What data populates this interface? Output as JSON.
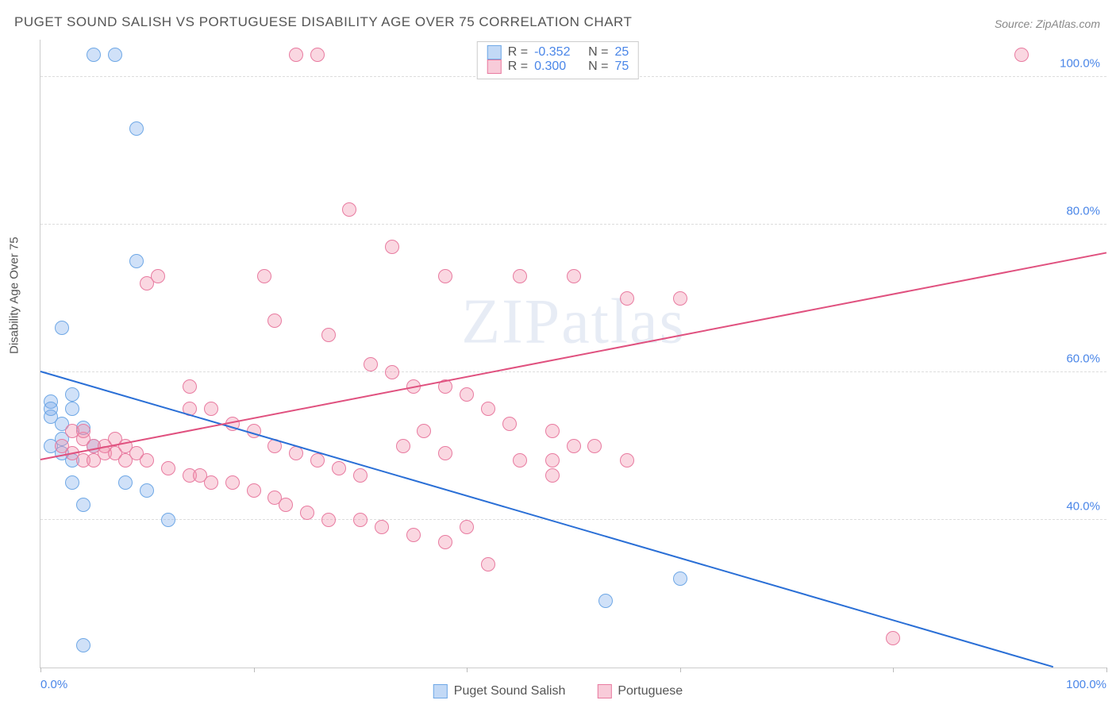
{
  "title": "PUGET SOUND SALISH VS PORTUGUESE DISABILITY AGE OVER 75 CORRELATION CHART",
  "source": "Source: ZipAtlas.com",
  "ylabel": "Disability Age Over 75",
  "watermark": "ZIPatlas",
  "chart": {
    "type": "scatter",
    "xlim": [
      0,
      100
    ],
    "ylim": [
      20,
      105
    ],
    "xticks": [
      0,
      20,
      40,
      60,
      80,
      100
    ],
    "yticks": [
      40,
      60,
      80,
      100
    ],
    "xtick_labels": {
      "start": "0.0%",
      "end": "100.0%"
    },
    "ytick_labels": [
      "40.0%",
      "60.0%",
      "80.0%",
      "100.0%"
    ],
    "grid_color": "#dddddd",
    "axis_color": "#cccccc",
    "background_color": "#ffffff",
    "marker_radius": 9,
    "marker_stroke_width": 1.5,
    "series": [
      {
        "name": "Puget Sound Salish",
        "color_fill": "rgba(120,170,235,0.35)",
        "color_stroke": "#6fa8e6",
        "line_color": "#2a6fd6",
        "R": "-0.352",
        "N": "25",
        "trend": {
          "x1": 0,
          "y1": 60,
          "x2": 95,
          "y2": 20
        },
        "points": [
          [
            5,
            103
          ],
          [
            7,
            103
          ],
          [
            9,
            93
          ],
          [
            2,
            66
          ],
          [
            3,
            57
          ],
          [
            1,
            56
          ],
          [
            3,
            55
          ],
          [
            1,
            54
          ],
          [
            2,
            53
          ],
          [
            4,
            52.5
          ],
          [
            2,
            51
          ],
          [
            1,
            50
          ],
          [
            5,
            50
          ],
          [
            8,
            45
          ],
          [
            3,
            45
          ],
          [
            4,
            42
          ],
          [
            9,
            75
          ],
          [
            10,
            44
          ],
          [
            12,
            40
          ],
          [
            53,
            29
          ],
          [
            60,
            32
          ],
          [
            4,
            23
          ],
          [
            2,
            49
          ],
          [
            3,
            48
          ],
          [
            1,
            55
          ]
        ]
      },
      {
        "name": "Portuguese",
        "color_fill": "rgba(240,140,170,0.35)",
        "color_stroke": "#e87ba0",
        "line_color": "#e0517f",
        "R": "0.300",
        "N": "75",
        "trend": {
          "x1": 0,
          "y1": 48,
          "x2": 100,
          "y2": 76
        },
        "points": [
          [
            24,
            103
          ],
          [
            26,
            103
          ],
          [
            29,
            82
          ],
          [
            33,
            77
          ],
          [
            38,
            73
          ],
          [
            45,
            73
          ],
          [
            50,
            73
          ],
          [
            55,
            70
          ],
          [
            10,
            72
          ],
          [
            21,
            73
          ],
          [
            22,
            67
          ],
          [
            27,
            65
          ],
          [
            31,
            61
          ],
          [
            33,
            60
          ],
          [
            35,
            58
          ],
          [
            38,
            58
          ],
          [
            40,
            57
          ],
          [
            42,
            55
          ],
          [
            44,
            53
          ],
          [
            48,
            52
          ],
          [
            50,
            50
          ],
          [
            52,
            50
          ],
          [
            55,
            48
          ],
          [
            8,
            50
          ],
          [
            9,
            49
          ],
          [
            10,
            48
          ],
          [
            12,
            47
          ],
          [
            14,
            46
          ],
          [
            15,
            46
          ],
          [
            16,
            45
          ],
          [
            18,
            45
          ],
          [
            20,
            44
          ],
          [
            22,
            43
          ],
          [
            23,
            42
          ],
          [
            25,
            41
          ],
          [
            27,
            40
          ],
          [
            30,
            40
          ],
          [
            32,
            39
          ],
          [
            35,
            38
          ],
          [
            38,
            37
          ],
          [
            40,
            39
          ],
          [
            42,
            34
          ],
          [
            14,
            58
          ],
          [
            16,
            55
          ],
          [
            18,
            53
          ],
          [
            20,
            52
          ],
          [
            22,
            50
          ],
          [
            24,
            49
          ],
          [
            26,
            48
          ],
          [
            28,
            47
          ],
          [
            30,
            46
          ],
          [
            2,
            50
          ],
          [
            3,
            49
          ],
          [
            4,
            48
          ],
          [
            5,
            48
          ],
          [
            6,
            49
          ],
          [
            7,
            49
          ],
          [
            8,
            48
          ],
          [
            4,
            51
          ],
          [
            5,
            50
          ],
          [
            6,
            50
          ],
          [
            7,
            51
          ],
          [
            3,
            52
          ],
          [
            4,
            52
          ],
          [
            92,
            103
          ],
          [
            80,
            24
          ],
          [
            60,
            70
          ],
          [
            48,
            48
          ],
          [
            34,
            50
          ],
          [
            36,
            52
          ],
          [
            38,
            49
          ],
          [
            45,
            48
          ],
          [
            48,
            46
          ],
          [
            11,
            73
          ],
          [
            14,
            55
          ]
        ]
      }
    ]
  },
  "legend_top": [
    {
      "swatch_fill": "rgba(120,170,235,0.45)",
      "swatch_stroke": "#6fa8e6",
      "R_label": "R =",
      "R": "-0.352",
      "N_label": "N =",
      "N": "25"
    },
    {
      "swatch_fill": "rgba(240,140,170,0.45)",
      "swatch_stroke": "#e87ba0",
      "R_label": "R =",
      "R": "0.300",
      "N_label": "N =",
      "N": "75"
    }
  ],
  "legend_bottom": [
    {
      "swatch_fill": "rgba(120,170,235,0.45)",
      "swatch_stroke": "#6fa8e6",
      "label": "Puget Sound Salish"
    },
    {
      "swatch_fill": "rgba(240,140,170,0.45)",
      "swatch_stroke": "#e87ba0",
      "label": "Portuguese"
    }
  ]
}
